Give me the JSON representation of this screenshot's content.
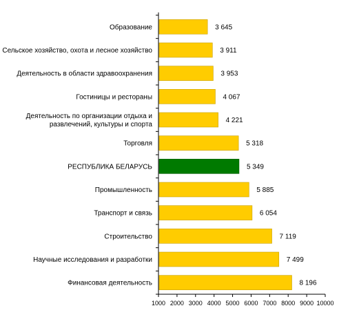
{
  "chart_data": {
    "type": "bar",
    "orientation": "horizontal",
    "categories": [
      [
        "Образование"
      ],
      [
        "Сельское хозяйство, охота и лесное хозяйство"
      ],
      [
        "Деятельность в области здравоохранения"
      ],
      [
        "Гостиницы и рестораны"
      ],
      [
        "Деятельность по организации отдыха и",
        "развлечений, культуры и спорта"
      ],
      [
        "Торговля"
      ],
      [
        "РЕСПУБЛИКА БЕЛАРУСЬ"
      ],
      [
        "Промышленность"
      ],
      [
        "Транспорт и связь"
      ],
      [
        "Строительство"
      ],
      [
        "Научные исследования и разработки"
      ],
      [
        "Финансовая деятельность"
      ]
    ],
    "values": [
      3645,
      3911,
      3953,
      4067,
      4221,
      5318,
      5349,
      5885,
      6054,
      7119,
      7499,
      8196
    ],
    "value_labels": [
      "3 645",
      "3 911",
      "3 953",
      "4 067",
      "4 221",
      "5 318",
      "5 349",
      "5 885",
      "6 054",
      "7 119",
      "7 499",
      "8 196"
    ],
    "highlight_index": 6,
    "xlim": [
      1000,
      10000
    ],
    "xticks": [
      1000,
      2000,
      3000,
      4000,
      5000,
      6000,
      7000,
      8000,
      9000,
      10000
    ],
    "title": "",
    "xlabel": "",
    "ylabel": "",
    "grid": false,
    "colors": {
      "bar": "#FFCC00",
      "bar_stroke": "#C8A000",
      "highlight": "#007A00",
      "highlight_stroke": "#005A00",
      "axis": "#000000"
    }
  }
}
